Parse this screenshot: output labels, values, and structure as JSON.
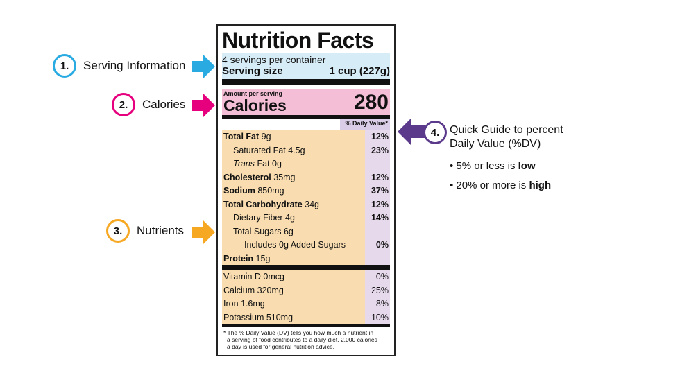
{
  "callouts": [
    {
      "num": "1.",
      "label": "Serving Information",
      "color": "#29abe2"
    },
    {
      "num": "2.",
      "label": "Calories",
      "color": "#e6007e"
    },
    {
      "num": "3.",
      "label": "Nutrients",
      "color": "#f7a823"
    },
    {
      "num": "4.",
      "label": "Quick Guide to percent",
      "label2": "Daily Value (%DV)",
      "color": "#5b3a8c"
    }
  ],
  "guide": {
    "b1_pre": "• 5% or less is ",
    "b1_bold": "low",
    "b2_pre": "• 20% or more is ",
    "b2_bold": "high"
  },
  "label": {
    "title": "Nutrition Facts",
    "servings": "4 servings per container",
    "serving_size_label": "Serving size",
    "serving_size_value": "1 cup (227g)",
    "amount_per_serving": "Amount per serving",
    "calories_label": "Calories",
    "calories_value": "280",
    "dv_header": "% Daily Value*",
    "rows": [
      {
        "bold": "Total Fat",
        "rest": " 9g",
        "pct": "12%"
      },
      {
        "bold": "",
        "rest": "Saturated Fat 4.5g",
        "pct": "23%"
      },
      {
        "italic": "Trans",
        "rest": " Fat 0g",
        "pct": ""
      },
      {
        "bold": "Cholesterol",
        "rest": " 35mg",
        "pct": "12%"
      },
      {
        "bold": "Sodium",
        "rest": " 850mg",
        "pct": "37%"
      },
      {
        "bold": "Total Carbohydrate",
        "rest": " 34g",
        "pct": "12%"
      },
      {
        "bold": "",
        "rest": "Dietary Fiber 4g",
        "pct": "14%"
      },
      {
        "bold": "",
        "rest": "Total Sugars 6g",
        "pct": ""
      },
      {
        "bold": "",
        "rest": "Includes 0g Added Sugars",
        "pct": "0%"
      },
      {
        "bold": "Protein",
        "rest": " 15g",
        "pct": ""
      }
    ],
    "vitamins": [
      {
        "name": "Vitamin D 0mcg",
        "pct": "0%"
      },
      {
        "name": "Calcium 320mg",
        "pct": "25%"
      },
      {
        "name": "Iron 1.6mg",
        "pct": "8%"
      },
      {
        "name": "Potassium 510mg",
        "pct": "10%"
      }
    ],
    "footnote_1": "* The % Daily Value (DV) tells you how much a nutrient in",
    "footnote_2": "a serving of food contributes to a daily diet. 2,000 calories",
    "footnote_3": "a day is used for general nutrition advice."
  }
}
